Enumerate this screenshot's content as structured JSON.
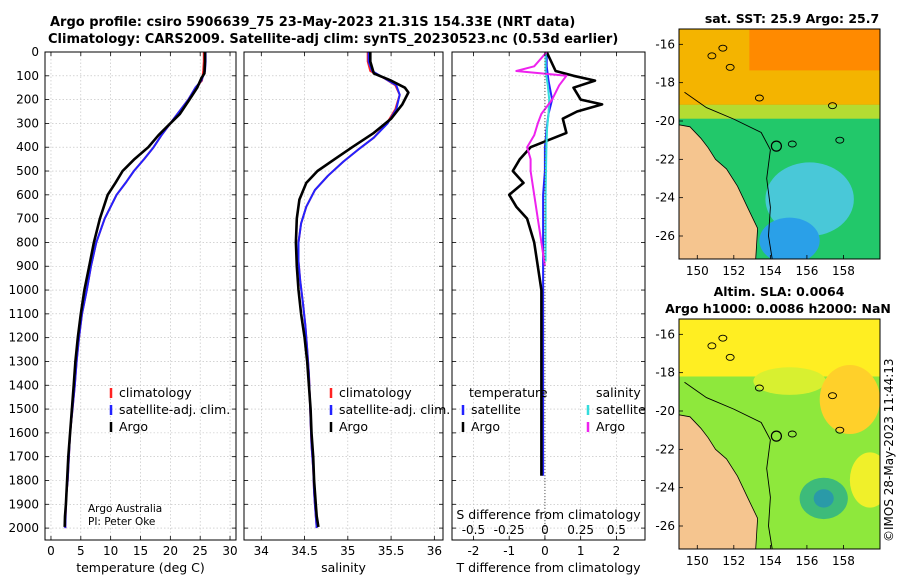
{
  "header": {
    "line1": "Argo profile: csiro 5906639_75 23-May-2023 21.31S 154.33E (NRT data)",
    "line2": "Climatology: CARS2009. Satellite-adj clim: synTS_20230523.nc (0.53d earlier)"
  },
  "colors": {
    "climatology": "#ff2222",
    "satellite": "#2222ff",
    "argo": "#000000",
    "sal_satellite": "#33dddd",
    "sal_argo": "#ee22ee"
  },
  "credit": {
    "line1": "Argo Australia",
    "line2": "PI: Peter Oke"
  },
  "watermark": "©IMOS 28-May-2023 11:44:13",
  "chart_data": [
    {
      "type": "line",
      "id": "temperature",
      "xlabel": "temperature (deg C)",
      "ylabel": "",
      "xlim": [
        -1,
        31
      ],
      "ylim": [
        2050,
        0
      ],
      "xticks": [
        0,
        5,
        10,
        15,
        20,
        25,
        30
      ],
      "yticks": [
        0,
        100,
        200,
        300,
        400,
        500,
        600,
        700,
        800,
        900,
        1000,
        1100,
        1200,
        1300,
        1400,
        1500,
        1600,
        1700,
        1800,
        1900,
        2000
      ],
      "grid": true,
      "legend": [
        "climatology",
        "satellite-adj. clim.",
        "Argo"
      ],
      "series": [
        {
          "name": "climatology",
          "color": "#ff2222",
          "x": [
            25.6,
            25.6,
            25.5,
            25.3,
            24.2,
            23,
            21.5,
            20,
            18.5,
            17.2,
            15.6,
            13.9,
            12.5,
            11,
            9,
            7.6,
            6.7,
            6,
            5.2,
            4.7,
            4.3,
            4.0,
            3.6,
            3.2,
            3.0,
            2.8,
            2.6,
            2.5,
            2.45,
            2.4
          ],
          "y": [
            0,
            40,
            80,
            120,
            150,
            200,
            250,
            300,
            350,
            400,
            450,
            500,
            550,
            600,
            700,
            800,
            900,
            1000,
            1100,
            1200,
            1300,
            1400,
            1500,
            1600,
            1700,
            1800,
            1850,
            1900,
            1950,
            2000
          ]
        },
        {
          "name": "satellite-adj. clim.",
          "color": "#2222ff",
          "x": [
            25.9,
            25.9,
            25.8,
            25.2,
            24.2,
            23,
            21.5,
            20,
            18.5,
            17.2,
            15.6,
            13.9,
            12.5,
            11,
            9,
            7.6,
            6.7,
            6,
            5.2,
            4.7,
            4.3,
            4.0,
            3.6,
            3.2,
            3.0,
            2.8,
            2.6,
            2.5,
            2.45,
            2.4
          ],
          "y": [
            0,
            40,
            80,
            120,
            150,
            200,
            250,
            300,
            350,
            400,
            450,
            500,
            550,
            600,
            700,
            800,
            900,
            1000,
            1100,
            1200,
            1300,
            1400,
            1500,
            1600,
            1700,
            1800,
            1850,
            1900,
            1950,
            2000
          ]
        },
        {
          "name": "Argo",
          "color": "#000000",
          "x": [
            25.8,
            25.8,
            25.7,
            25.2,
            24.5,
            23.2,
            21.6,
            20,
            18,
            16.3,
            14,
            12,
            10.8,
            9.5,
            8.2,
            7.2,
            6.4,
            5.6,
            5.0,
            4.5,
            4.1,
            3.8,
            3.5,
            3.2,
            2.9,
            2.7,
            2.5,
            2.35,
            2.3
          ],
          "y": [
            0,
            40,
            90,
            110,
            150,
            200,
            260,
            300,
            350,
            400,
            450,
            500,
            550,
            600,
            700,
            800,
            900,
            1000,
            1100,
            1200,
            1300,
            1400,
            1500,
            1600,
            1700,
            1800,
            1900,
            1950,
            1995
          ]
        }
      ]
    },
    {
      "type": "line",
      "id": "salinity",
      "xlabel": "salinity",
      "ylabel": "",
      "xlim": [
        33.8,
        36.1
      ],
      "ylim": [
        2050,
        0
      ],
      "xticks": [
        34,
        34.5,
        35,
        35.5,
        36
      ],
      "grid": true,
      "legend": [
        "climatology",
        "satellite-adj. clim.",
        "Argo"
      ],
      "series": [
        {
          "name": "climatology",
          "color": "#ff2222",
          "x": [
            35.23,
            35.23,
            35.26,
            35.42,
            35.55,
            35.6,
            35.55,
            35.45,
            35.3,
            35.12,
            34.95,
            34.77,
            34.62,
            34.52,
            34.46,
            34.43,
            34.43,
            34.45,
            34.48,
            34.51,
            34.53,
            34.55,
            34.56,
            34.57,
            34.58,
            34.6,
            34.61,
            34.62,
            34.63,
            34.64
          ],
          "y": [
            0,
            40,
            80,
            110,
            140,
            180,
            240,
            300,
            360,
            410,
            460,
            520,
            580,
            650,
            720,
            800,
            880,
            960,
            1050,
            1150,
            1250,
            1350,
            1450,
            1550,
            1650,
            1750,
            1850,
            1900,
            1950,
            2000
          ]
        },
        {
          "name": "satellite-adj. clim.",
          "color": "#2222ff",
          "x": [
            35.24,
            35.24,
            35.28,
            35.42,
            35.56,
            35.6,
            35.56,
            35.46,
            35.3,
            35.12,
            34.95,
            34.77,
            34.62,
            34.52,
            34.46,
            34.43,
            34.43,
            34.45,
            34.48,
            34.51,
            34.53,
            34.55,
            34.56,
            34.57,
            34.58,
            34.6,
            34.61,
            34.62,
            34.63,
            34.64
          ],
          "y": [
            0,
            40,
            80,
            110,
            140,
            180,
            240,
            300,
            360,
            410,
            460,
            520,
            580,
            650,
            720,
            800,
            880,
            960,
            1050,
            1150,
            1250,
            1350,
            1450,
            1550,
            1650,
            1750,
            1850,
            1900,
            1950,
            2000
          ]
        },
        {
          "name": "Argo",
          "color": "#000000",
          "x": [
            35.26,
            35.26,
            35.3,
            35.5,
            35.66,
            35.7,
            35.63,
            35.5,
            35.3,
            35.05,
            34.85,
            34.65,
            34.52,
            34.44,
            34.41,
            34.4,
            34.41,
            34.43,
            34.46,
            34.5,
            34.53,
            34.55,
            34.57,
            34.58,
            34.6,
            34.61,
            34.63,
            34.64,
            34.66
          ],
          "y": [
            0,
            40,
            90,
            120,
            150,
            170,
            220,
            280,
            340,
            400,
            450,
            500,
            550,
            620,
            700,
            800,
            900,
            1000,
            1100,
            1200,
            1300,
            1400,
            1500,
            1600,
            1700,
            1800,
            1900,
            1950,
            1995
          ]
        }
      ]
    },
    {
      "type": "line",
      "id": "difference",
      "xlabel": "T difference from climatology",
      "xlabel_top": "S difference from climatology",
      "xlim": [
        -2.6,
        2.8
      ],
      "ylim": [
        2050,
        0
      ],
      "xticks": [
        -2,
        -1,
        0,
        1,
        2
      ],
      "xtick_labels_top": [
        "-0.5",
        "-0.25",
        "0",
        "0.25",
        "0.5"
      ],
      "xticks_top_Tunits": [
        -2,
        -1,
        0,
        1,
        2
      ],
      "grid": true,
      "legend_temperature_title": "temperature",
      "legend_salinity_title": "salinity",
      "legend_temperature": [
        "satellite",
        "Argo"
      ],
      "legend_salinity": [
        "satellite",
        "Argo"
      ],
      "series": [
        {
          "name": "temperature satellite",
          "color": "#2222ff",
          "x": [
            0.05,
            0.05,
            0.1,
            0.2,
            0.1,
            0.05,
            0.0,
            0.0,
            -0.05,
            -0.05,
            -0.05,
            -0.05,
            -0.05,
            -0.05,
            -0.05,
            -0.05,
            -0.05,
            -0.05,
            -0.05,
            -0.05,
            -0.05
          ],
          "y": [
            0,
            60,
            120,
            200,
            260,
            320,
            400,
            500,
            600,
            700,
            800,
            900,
            1000,
            1100,
            1200,
            1300,
            1400,
            1500,
            1600,
            1700,
            1780
          ]
        },
        {
          "name": "temperature Argo",
          "color": "#000000",
          "x": [
            0.05,
            0.3,
            0.8,
            1.4,
            0.8,
            1.0,
            1.6,
            0.9,
            0.5,
            0.6,
            -0.4,
            -0.7,
            -0.9,
            -0.6,
            -1.0,
            -0.8,
            -0.5,
            -0.3,
            -0.2,
            -0.1,
            -0.1,
            -0.1,
            -0.1,
            -0.1,
            -0.1,
            -0.1
          ],
          "y": [
            0,
            80,
            100,
            120,
            150,
            200,
            220,
            250,
            280,
            340,
            400,
            450,
            500,
            550,
            600,
            650,
            700,
            800,
            900,
            1000,
            1100,
            1200,
            1300,
            1400,
            1600,
            1780
          ]
        },
        {
          "name": "salinity satellite",
          "color": "#33dddd",
          "x": [
            0.02,
            0.02,
            0.08,
            0.12,
            0.1,
            0.06,
            0.04,
            0.03,
            0.02,
            0.02,
            0.02,
            0.02
          ],
          "y": [
            0,
            80,
            140,
            200,
            260,
            320,
            400,
            500,
            600,
            700,
            800,
            880
          ]
        },
        {
          "name": "salinity Argo",
          "color": "#ee22ee",
          "x": [
            0.05,
            -0.3,
            -0.8,
            0.6,
            0.4,
            0.2,
            -0.1,
            -0.2,
            -0.3,
            -0.5,
            -0.4,
            -0.4,
            -0.3,
            -0.2,
            -0.1,
            0.0
          ],
          "y": [
            0,
            60,
            80,
            100,
            140,
            200,
            260,
            300,
            350,
            400,
            450,
            500,
            600,
            700,
            800,
            900
          ]
        }
      ]
    },
    {
      "type": "heatmap",
      "id": "sst_map",
      "title": "sat. SST: 25.9 Argo: 25.7",
      "xlim": [
        149,
        160
      ],
      "ylim": [
        -27.2,
        -15.2
      ],
      "xticks": [
        150,
        152,
        154,
        156,
        158
      ],
      "yticks": [
        -16,
        -18,
        -20,
        -22,
        -24,
        -26
      ]
    },
    {
      "type": "heatmap",
      "id": "sla_map",
      "title": "Altim. SLA: 0.0064",
      "subtitle": "Argo h1000: 0.0086 h2000: NaN",
      "xlim": [
        149,
        160
      ],
      "ylim": [
        -27.2,
        -15.2
      ],
      "xticks": [
        150,
        152,
        154,
        156,
        158
      ],
      "yticks": [
        -16,
        -18,
        -20,
        -22,
        -24,
        -26
      ]
    }
  ]
}
